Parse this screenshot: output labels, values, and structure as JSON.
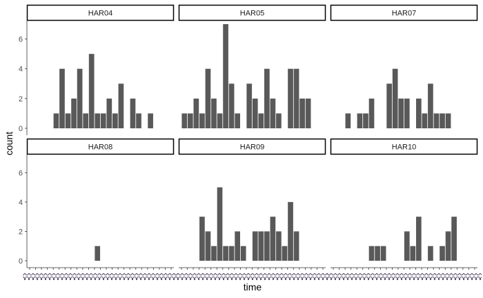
{
  "chart_data": {
    "type": "bar",
    "xlabel": "time",
    "ylabel": "count",
    "ylim": [
      0,
      7
    ],
    "y_ticks": [
      0,
      2,
      4,
      6
    ],
    "x_tick_labels_legible": false,
    "grid": false,
    "legend": "none",
    "bar_color": "#595959",
    "strip_border_color": "#000000",
    "axis_text_color": "#4d4d4d",
    "num_bins": 24,
    "panels": [
      {
        "name": "HAR04",
        "values": [
          0,
          0,
          0,
          0,
          1,
          4,
          1,
          2,
          4,
          1,
          5,
          1,
          1,
          2,
          1,
          3,
          0,
          2,
          1,
          0,
          1,
          0,
          0,
          0
        ]
      },
      {
        "name": "HAR05",
        "values": [
          1,
          1,
          2,
          1,
          4,
          2,
          1,
          7,
          3,
          1,
          0,
          3,
          2,
          1,
          4,
          2,
          1,
          0,
          4,
          4,
          2,
          2,
          0,
          0
        ]
      },
      {
        "name": "HAR07",
        "values": [
          0,
          0,
          1,
          0,
          1,
          1,
          2,
          0,
          0,
          3,
          4,
          2,
          2,
          0,
          2,
          1,
          3,
          1,
          1,
          1,
          0,
          0,
          0,
          0
        ]
      },
      {
        "name": "HAR08",
        "values": [
          0,
          0,
          0,
          0,
          0,
          0,
          0,
          0,
          0,
          0,
          0,
          1,
          0,
          0,
          0,
          0,
          0,
          0,
          0,
          0,
          0,
          0,
          0,
          0
        ]
      },
      {
        "name": "HAR09",
        "values": [
          0,
          0,
          0,
          3,
          2,
          1,
          5,
          1,
          1,
          2,
          1,
          0,
          2,
          2,
          2,
          3,
          2,
          1,
          4,
          2,
          0,
          0,
          0,
          0
        ]
      },
      {
        "name": "HAR10",
        "values": [
          0,
          0,
          0,
          0,
          0,
          0,
          1,
          1,
          1,
          0,
          0,
          0,
          2,
          1,
          3,
          0,
          1,
          0,
          1,
          2,
          3,
          0,
          0,
          0
        ]
      }
    ]
  }
}
